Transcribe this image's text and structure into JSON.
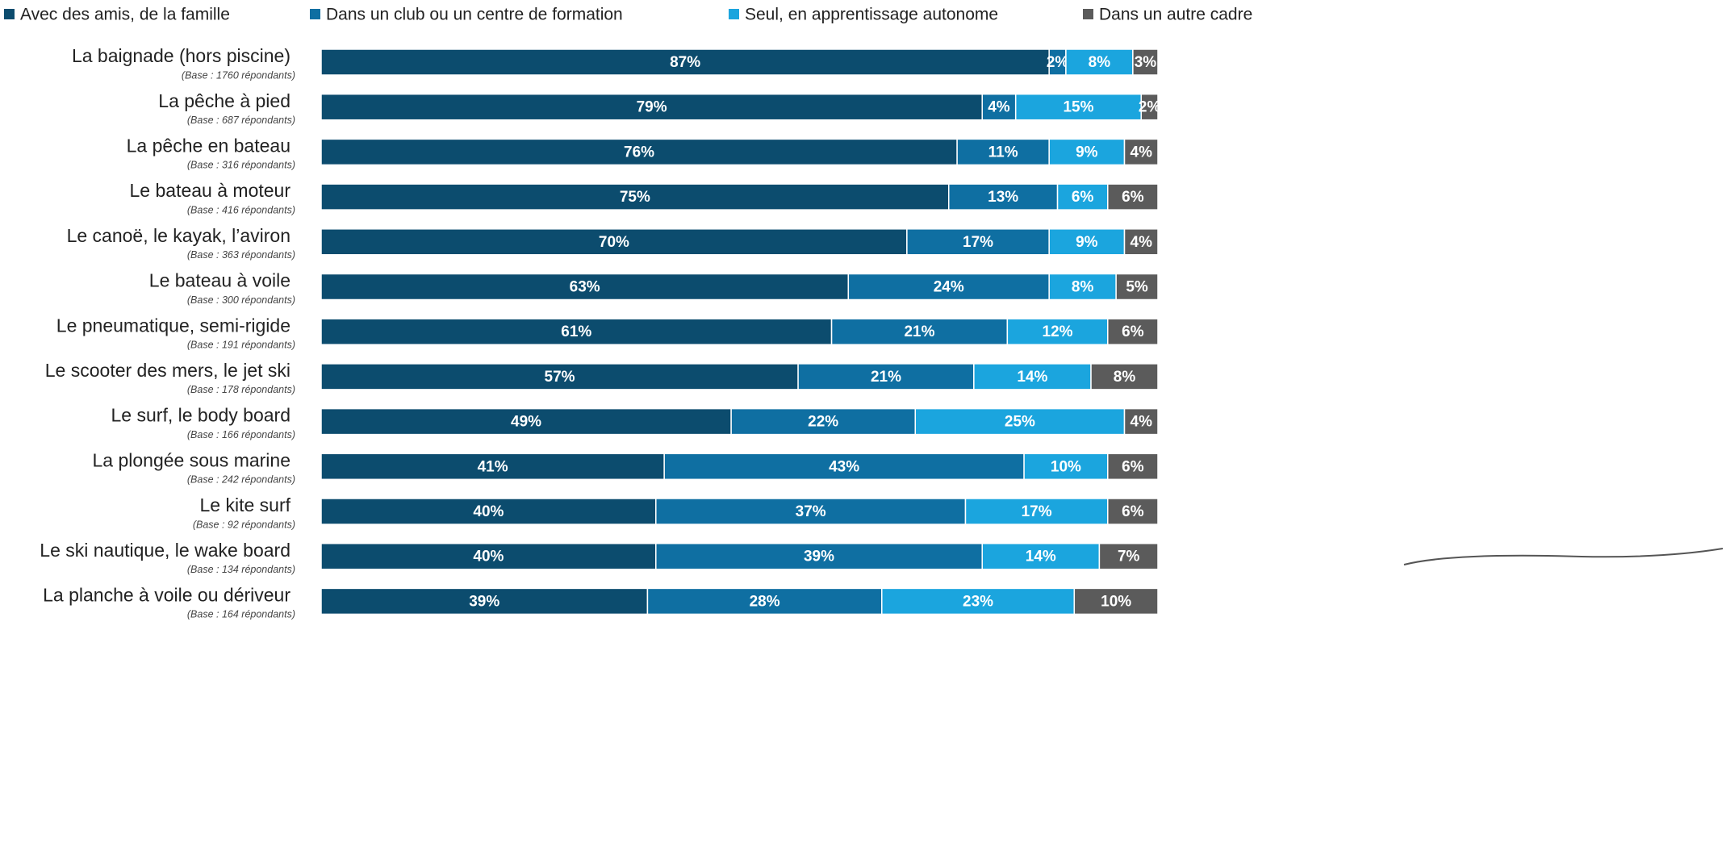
{
  "chart_data": {
    "type": "stacked-bar-horizontal",
    "categories": [
      "La baignade (hors piscine)",
      "La pêche à pied",
      "La pêche en bateau",
      "Le bateau à moteur",
      "Le canoë, le kayak, l’aviron",
      "Le bateau à voile",
      "Le pneumatique, semi-rigide",
      "Le scooter des mers, le jet ski",
      "Le surf, le body board",
      "La plongée sous marine",
      "Le kite surf",
      "Le ski nautique, le wake board",
      "La planche à voile ou dériveur"
    ],
    "category_notes": [
      "(Base : 1760 répondants)",
      "(Base : 687 répondants)",
      "(Base : 316 répondants)",
      "(Base : 416 répondants)",
      "(Base : 363 répondants)",
      "(Base : 300 répondants)",
      "(Base : 191 répondants)",
      "(Base : 178 répondants)",
      "(Base : 166 répondants)",
      "(Base : 242 répondants)",
      "(Base : 92 répondants)",
      "(Base : 134 répondants)",
      "(Base : 164 répondants)"
    ],
    "xlim": [
      0,
      100
    ],
    "series": [
      {
        "name": "Avec des amis, de la famille",
        "color": "#0c4c6e",
        "values": [
          87,
          79,
          76,
          75,
          70,
          63,
          61,
          57,
          49,
          41,
          40,
          40,
          39
        ],
        "value_labels": [
          "87%",
          "79%",
          "76%",
          "75%",
          "70%",
          "63%",
          "61%",
          "57%",
          "49%",
          "41%",
          "40%",
          "40%",
          "39%"
        ]
      },
      {
        "name": "Dans un club ou un centre de formation",
        "color": "#0f6fa2",
        "values": [
          2,
          4,
          11,
          13,
          17,
          24,
          21,
          21,
          22,
          43,
          37,
          39,
          28
        ],
        "value_labels": [
          "2%",
          "4%",
          "11%",
          "13%",
          "17%",
          "24%",
          "21%",
          "21%",
          "22%",
          "43%",
          "37%",
          "39%",
          "28%"
        ]
      },
      {
        "name": "Seul, en apprentissage autonome",
        "color": "#1ba5de",
        "values": [
          8,
          15,
          9,
          6,
          9,
          8,
          12,
          14,
          25,
          10,
          17,
          14,
          23
        ],
        "value_labels": [
          "8%",
          "15%",
          "9%",
          "6%",
          "9%",
          "8%",
          "12%",
          "14%",
          "25%",
          "10%",
          "17%",
          "14%",
          "23%"
        ]
      },
      {
        "name": "Dans un autre cadre",
        "color": "#5b5b5b",
        "values": [
          3,
          2,
          4,
          6,
          4,
          5,
          6,
          8,
          4,
          6,
          6,
          7,
          10
        ],
        "value_labels": [
          "3%",
          "2%",
          "4%",
          "6%",
          "4%",
          "5%",
          "6%",
          "8%",
          "4%",
          "6%",
          "6%",
          "7%",
          "10%"
        ]
      }
    ]
  }
}
